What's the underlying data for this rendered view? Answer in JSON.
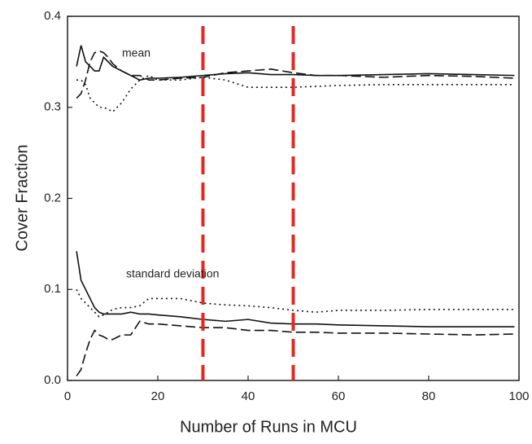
{
  "chart_data": {
    "type": "line",
    "xlabel": "Number of Runs in MCU",
    "ylabel": "Cover Fraction",
    "annotations": [
      "mean",
      "standard deviation"
    ],
    "xlim": [
      0,
      100
    ],
    "ylim": [
      0,
      0.4
    ],
    "xticks": [
      0,
      20,
      40,
      60,
      80,
      100
    ],
    "yticks": [
      {
        "value": 0,
        "label": "0.0"
      },
      0.1,
      0.2,
      0.3,
      0.4
    ],
    "grid": false,
    "x": [
      2,
      3,
      4,
      5,
      6,
      7,
      8,
      9,
      10,
      12,
      14,
      16,
      18,
      20,
      25,
      30,
      35,
      40,
      45,
      50,
      55,
      60,
      70,
      80,
      90,
      99
    ],
    "series": [
      {
        "color": "#111111",
        "dash": "solid",
        "values": [
          0.345,
          0.368,
          0.35,
          0.345,
          0.34,
          0.34,
          0.355,
          0.35,
          0.345,
          0.34,
          0.335,
          0.33,
          0.332,
          0.332,
          0.333,
          0.335,
          0.337,
          0.338,
          0.336,
          0.336,
          0.335,
          0.335,
          0.336,
          0.337,
          0.336,
          0.335
        ]
      },
      {
        "color": "#111111",
        "dash": "dashed",
        "values": [
          0.31,
          0.315,
          0.33,
          0.35,
          0.36,
          0.362,
          0.36,
          0.355,
          0.348,
          0.34,
          0.335,
          0.335,
          0.33,
          0.33,
          0.332,
          0.333,
          0.338,
          0.34,
          0.342,
          0.338,
          0.335,
          0.335,
          0.333,
          0.335,
          0.334,
          0.332
        ]
      },
      {
        "color": "#111111",
        "dash": "dotted",
        "values": [
          0.33,
          0.33,
          0.325,
          0.31,
          0.305,
          0.3,
          0.3,
          0.298,
          0.295,
          0.305,
          0.32,
          0.33,
          0.335,
          0.33,
          0.33,
          0.333,
          0.33,
          0.322,
          0.322,
          0.322,
          0.323,
          0.324,
          0.325,
          0.325,
          0.325,
          0.325
        ]
      },
      {
        "color": "#111111",
        "dash": "solid",
        "values": [
          0.142,
          0.11,
          0.1,
          0.09,
          0.08,
          0.075,
          0.073,
          0.073,
          0.073,
          0.073,
          0.075,
          0.073,
          0.073,
          0.072,
          0.07,
          0.067,
          0.065,
          0.067,
          0.063,
          0.062,
          0.062,
          0.061,
          0.06,
          0.059,
          0.059,
          0.059
        ]
      },
      {
        "color": "#111111",
        "dash": "dashed",
        "values": [
          0.005,
          0.012,
          0.03,
          0.045,
          0.055,
          0.05,
          0.048,
          0.045,
          0.045,
          0.05,
          0.05,
          0.065,
          0.062,
          0.062,
          0.06,
          0.058,
          0.058,
          0.055,
          0.055,
          0.053,
          0.053,
          0.052,
          0.052,
          0.051,
          0.05,
          0.051
        ]
      },
      {
        "color": "#111111",
        "dash": "dotted",
        "values": [
          0.1,
          0.09,
          0.085,
          0.08,
          0.075,
          0.07,
          0.072,
          0.075,
          0.078,
          0.08,
          0.08,
          0.082,
          0.09,
          0.09,
          0.09,
          0.085,
          0.083,
          0.082,
          0.08,
          0.077,
          0.075,
          0.077,
          0.077,
          0.078,
          0.078,
          0.078
        ]
      }
    ],
    "reference_lines": [
      {
        "x": 30,
        "color": "#e8251f"
      },
      {
        "x": 50,
        "color": "#e8251f"
      }
    ]
  }
}
